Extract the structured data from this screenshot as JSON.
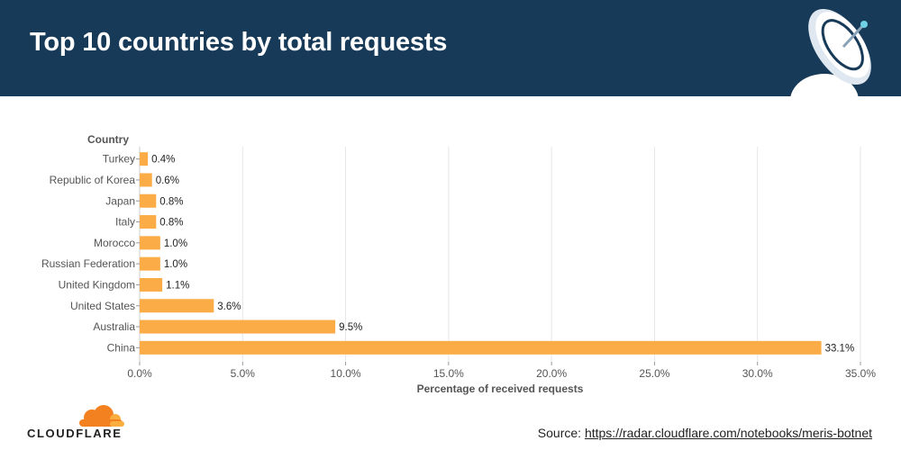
{
  "header": {
    "title": "Top 10 countries by total requests"
  },
  "chart_data": {
    "type": "bar",
    "orientation": "horizontal",
    "categories": [
      "Turkey",
      "Republic of Korea",
      "Japan",
      "Italy",
      "Morocco",
      "Russian Federation",
      "United Kingdom",
      "United States",
      "Australia",
      "China"
    ],
    "values": [
      0.4,
      0.6,
      0.8,
      0.8,
      1.0,
      1.0,
      1.1,
      3.6,
      9.5,
      33.1
    ],
    "data_labels": [
      "0.4%",
      "0.6%",
      "0.8%",
      "0.8%",
      "1.0%",
      "1.0%",
      "1.1%",
      "3.6%",
      "9.5%",
      "33.1%"
    ],
    "ylabel": "Country",
    "xlabel": "Percentage of received requests",
    "xlim": [
      0,
      35
    ],
    "xticks": [
      0,
      5,
      10,
      15,
      20,
      25,
      30,
      35
    ],
    "xtick_labels": [
      "0.0%",
      "5.0%",
      "10.0%",
      "15.0%",
      "20.0%",
      "25.0%",
      "30.0%",
      "35.0%"
    ],
    "grid": "vertical",
    "bar_color": "#fbac47"
  },
  "footer": {
    "brand": "CLOUDFLARE",
    "source_prefix": "Source: ",
    "source_link": "https://radar.cloudflare.com/notebooks/meris-botnet"
  },
  "icons": {
    "header_icon": "satellite-dish-icon",
    "logo_icon": "cloudflare-cloud-icon"
  }
}
